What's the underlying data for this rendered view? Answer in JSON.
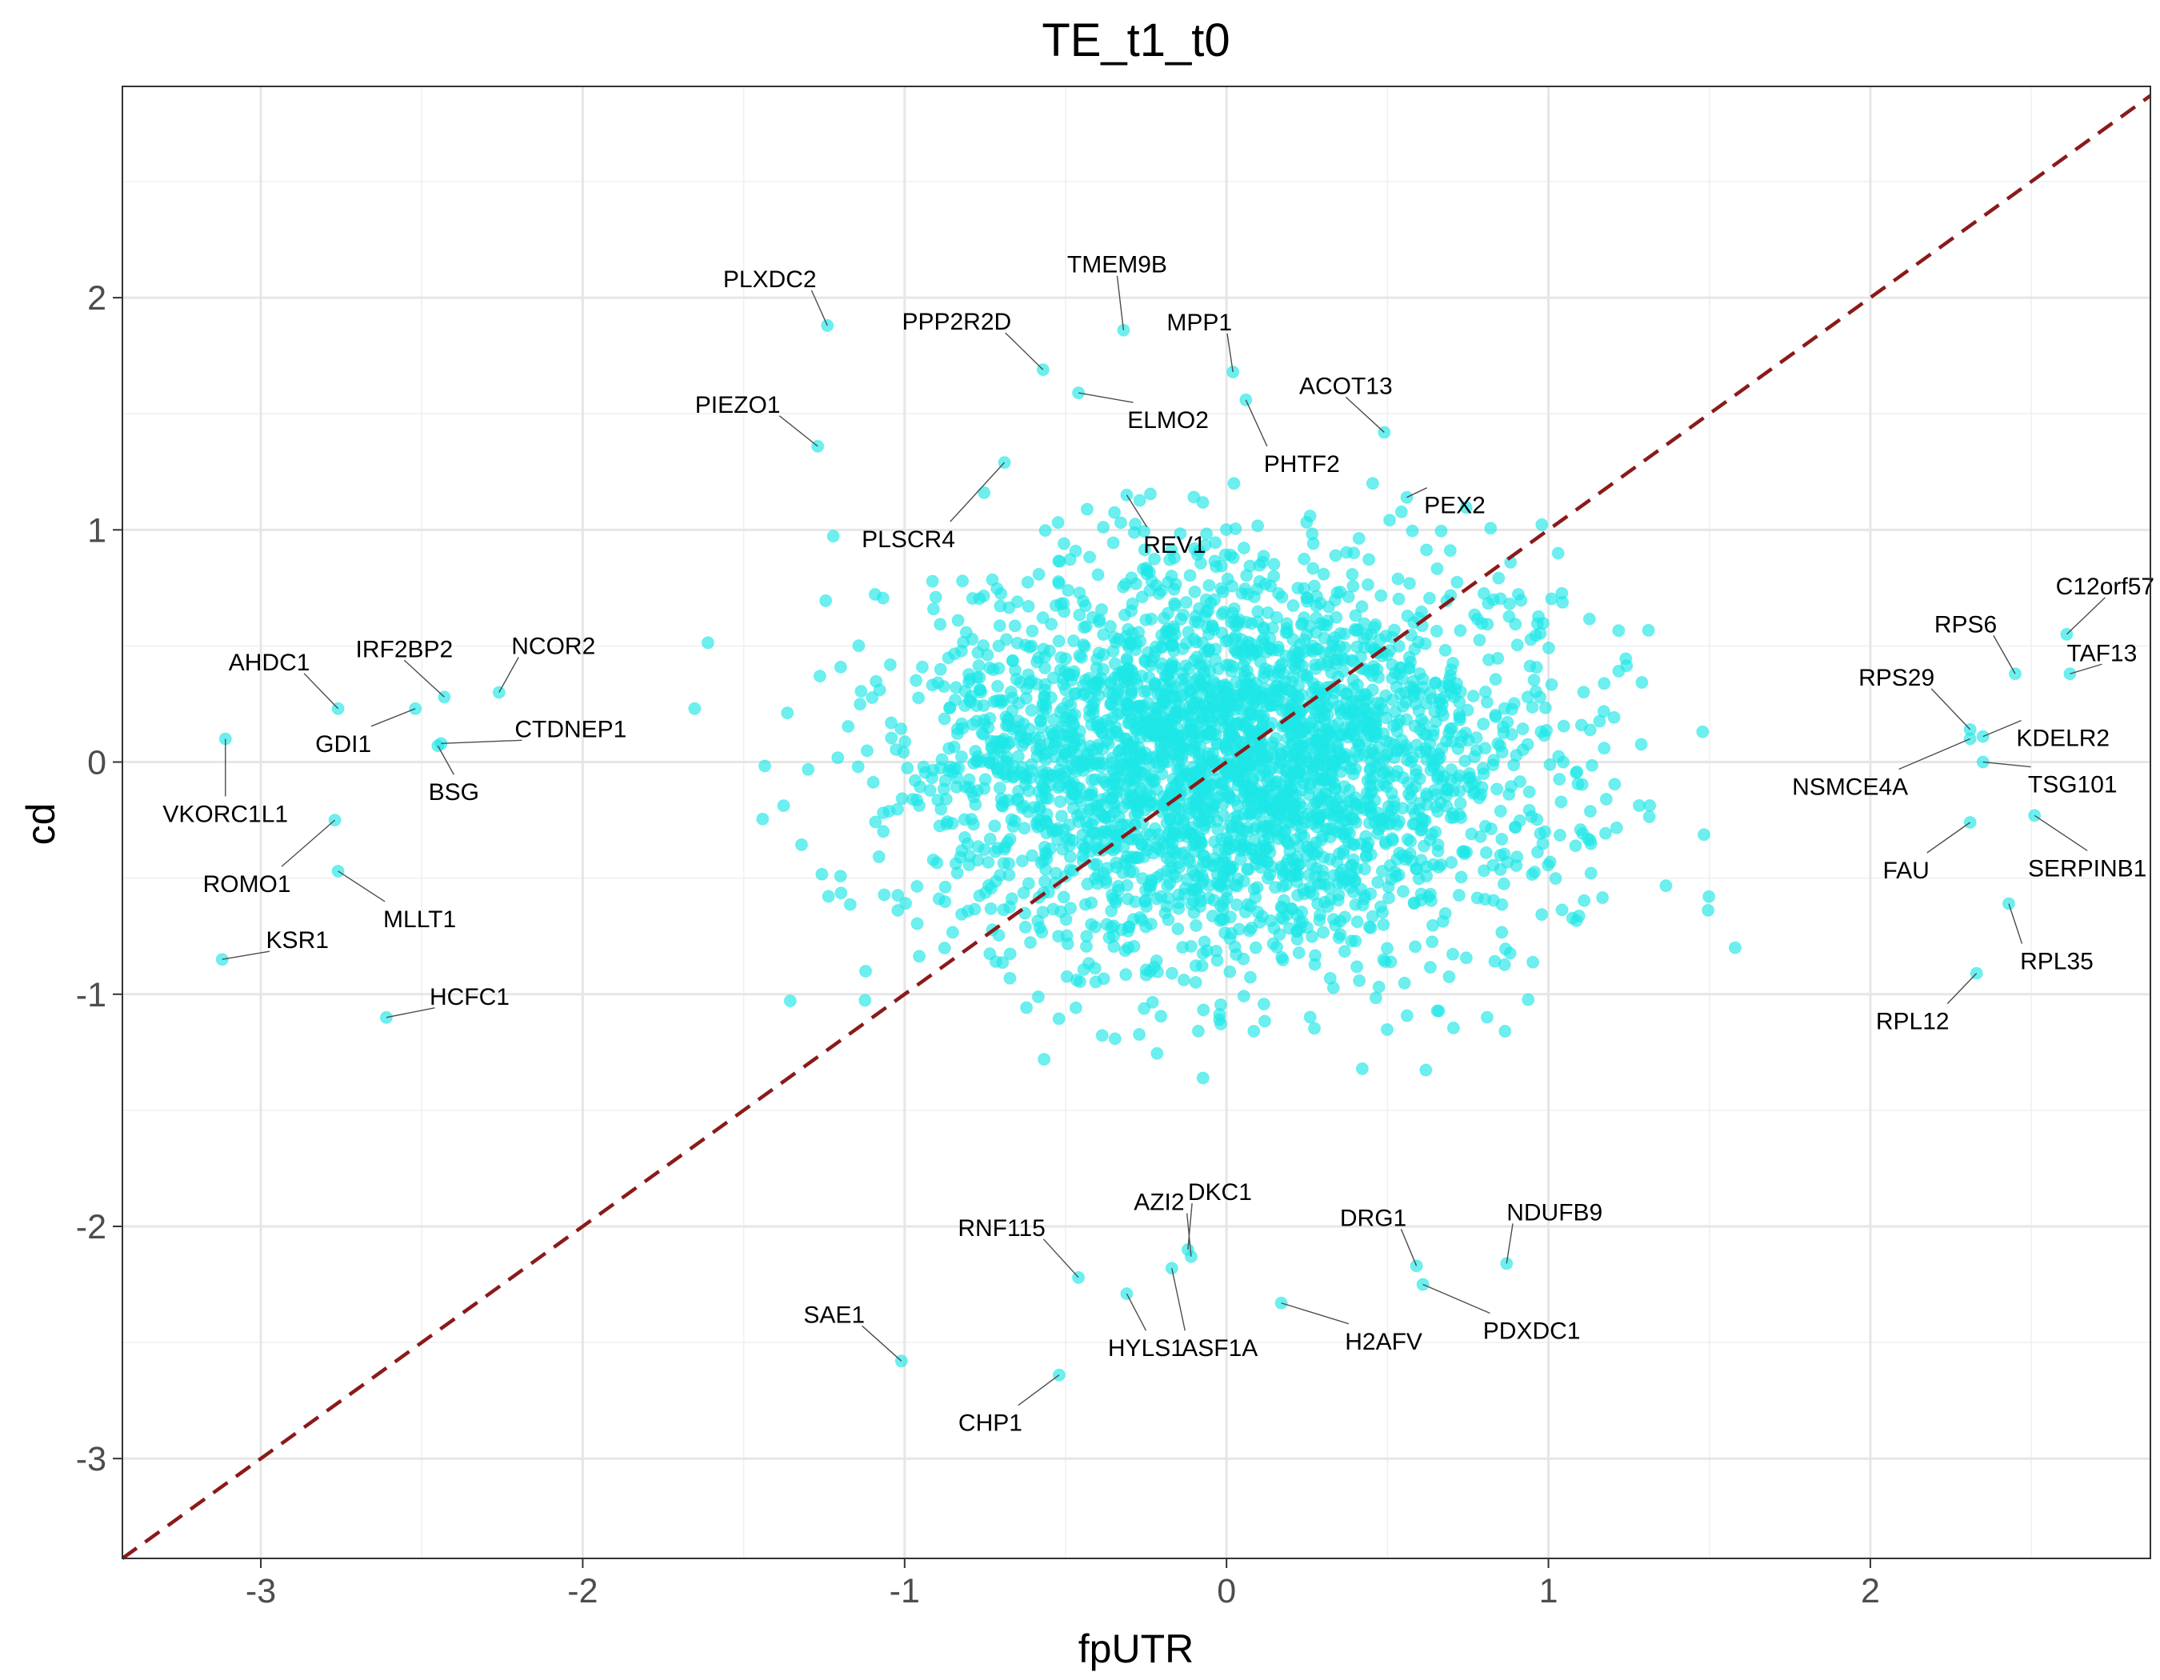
{
  "chart_data": {
    "type": "scatter",
    "title": "TE_t1_t0",
    "xlabel": "fpUTR",
    "ylabel": "cd",
    "xlim": [
      -3.43,
      2.87
    ],
    "ylim": [
      -3.43,
      2.91
    ],
    "x_ticks": [
      -3,
      -2,
      -1,
      0,
      1,
      2
    ],
    "y_ticks": [
      -3,
      -2,
      -1,
      0,
      1,
      2
    ],
    "x_tick_labels": [
      "-3",
      "-2",
      "-1",
      "0",
      "1",
      "2"
    ],
    "y_tick_labels": [
      "-3",
      "-2",
      "-1",
      "0",
      "1",
      "2"
    ],
    "grid": true,
    "reference_line": {
      "slope": 1,
      "intercept": 0,
      "style": "dashed",
      "color": "#8b1a1a"
    },
    "point_color": "#1fe6e6",
    "background_points": {
      "count": 3200,
      "x_mean": 0.0,
      "y_mean": 0.0,
      "x_sd": 0.48,
      "y_sd": 0.42,
      "seed": 7
    },
    "labeled_points": [
      {
        "label": "PLXDC2",
        "x": -1.24,
        "y": 1.88
      },
      {
        "label": "TMEM9B",
        "x": -0.32,
        "y": 1.86
      },
      {
        "label": "PPP2R2D",
        "x": -0.57,
        "y": 1.69
      },
      {
        "label": "MPP1",
        "x": 0.02,
        "y": 1.68
      },
      {
        "label": "ELMO2",
        "x": -0.46,
        "y": 1.59
      },
      {
        "label": "ACOT13",
        "x": 0.49,
        "y": 1.42
      },
      {
        "label": "PIEZO1",
        "x": -1.27,
        "y": 1.36
      },
      {
        "label": "PHTF2",
        "x": 0.06,
        "y": 1.56
      },
      {
        "label": "PEX2",
        "x": 0.56,
        "y": 1.14
      },
      {
        "label": "REV1",
        "x": -0.31,
        "y": 1.15
      },
      {
        "label": "PLSCR4",
        "x": -0.69,
        "y": 1.29
      },
      {
        "label": "C12orf57",
        "x": 2.61,
        "y": 0.55
      },
      {
        "label": "RPS6",
        "x": 2.45,
        "y": 0.38
      },
      {
        "label": "TAF13",
        "x": 2.62,
        "y": 0.38
      },
      {
        "label": "RPS29",
        "x": 2.31,
        "y": 0.14
      },
      {
        "label": "KDELR2",
        "x": 2.35,
        "y": 0.11
      },
      {
        "label": "NSMCE4A",
        "x": 2.31,
        "y": 0.1
      },
      {
        "label": "TSG101",
        "x": 2.35,
        "y": 0.0
      },
      {
        "label": "SERPINB1",
        "x": 2.51,
        "y": -0.23
      },
      {
        "label": "FAU",
        "x": 2.31,
        "y": -0.26
      },
      {
        "label": "RPL35",
        "x": 2.43,
        "y": -0.61
      },
      {
        "label": "RPL12",
        "x": 2.33,
        "y": -0.91
      },
      {
        "label": "AHDC1",
        "x": -2.76,
        "y": 0.23
      },
      {
        "label": "IRF2BP2",
        "x": -2.43,
        "y": 0.28
      },
      {
        "label": "NCOR2",
        "x": -2.26,
        "y": 0.3
      },
      {
        "label": "GDI1",
        "x": -2.52,
        "y": 0.23
      },
      {
        "label": "CTDNEP1",
        "x": -2.44,
        "y": 0.08
      },
      {
        "label": "BSG",
        "x": -2.45,
        "y": 0.07
      },
      {
        "label": "VKORC1L1",
        "x": -3.11,
        "y": 0.1
      },
      {
        "label": "ROMO1",
        "x": -2.77,
        "y": -0.25
      },
      {
        "label": "MLLT1",
        "x": -2.76,
        "y": -0.47
      },
      {
        "label": "KSR1",
        "x": -3.12,
        "y": -0.85
      },
      {
        "label": "HCFC1",
        "x": -2.61,
        "y": -1.1
      },
      {
        "label": "RNF115",
        "x": -0.46,
        "y": -2.22
      },
      {
        "label": "AZI2",
        "x": -0.11,
        "y": -2.13
      },
      {
        "label": "DKC1",
        "x": -0.12,
        "y": -2.1
      },
      {
        "label": "DRG1",
        "x": 0.59,
        "y": -2.17
      },
      {
        "label": "NDUFB9",
        "x": 0.87,
        "y": -2.16
      },
      {
        "label": "SAE1",
        "x": -1.01,
        "y": -2.58
      },
      {
        "label": "HYLS1",
        "x": -0.31,
        "y": -2.29
      },
      {
        "label": "ASF1A",
        "x": -0.17,
        "y": -2.18
      },
      {
        "label": "H2AFV",
        "x": 0.17,
        "y": -2.33
      },
      {
        "label": "PDXDC1",
        "x": 0.61,
        "y": -2.25
      },
      {
        "label": "CHP1",
        "x": -0.52,
        "y": -2.64
      }
    ]
  }
}
